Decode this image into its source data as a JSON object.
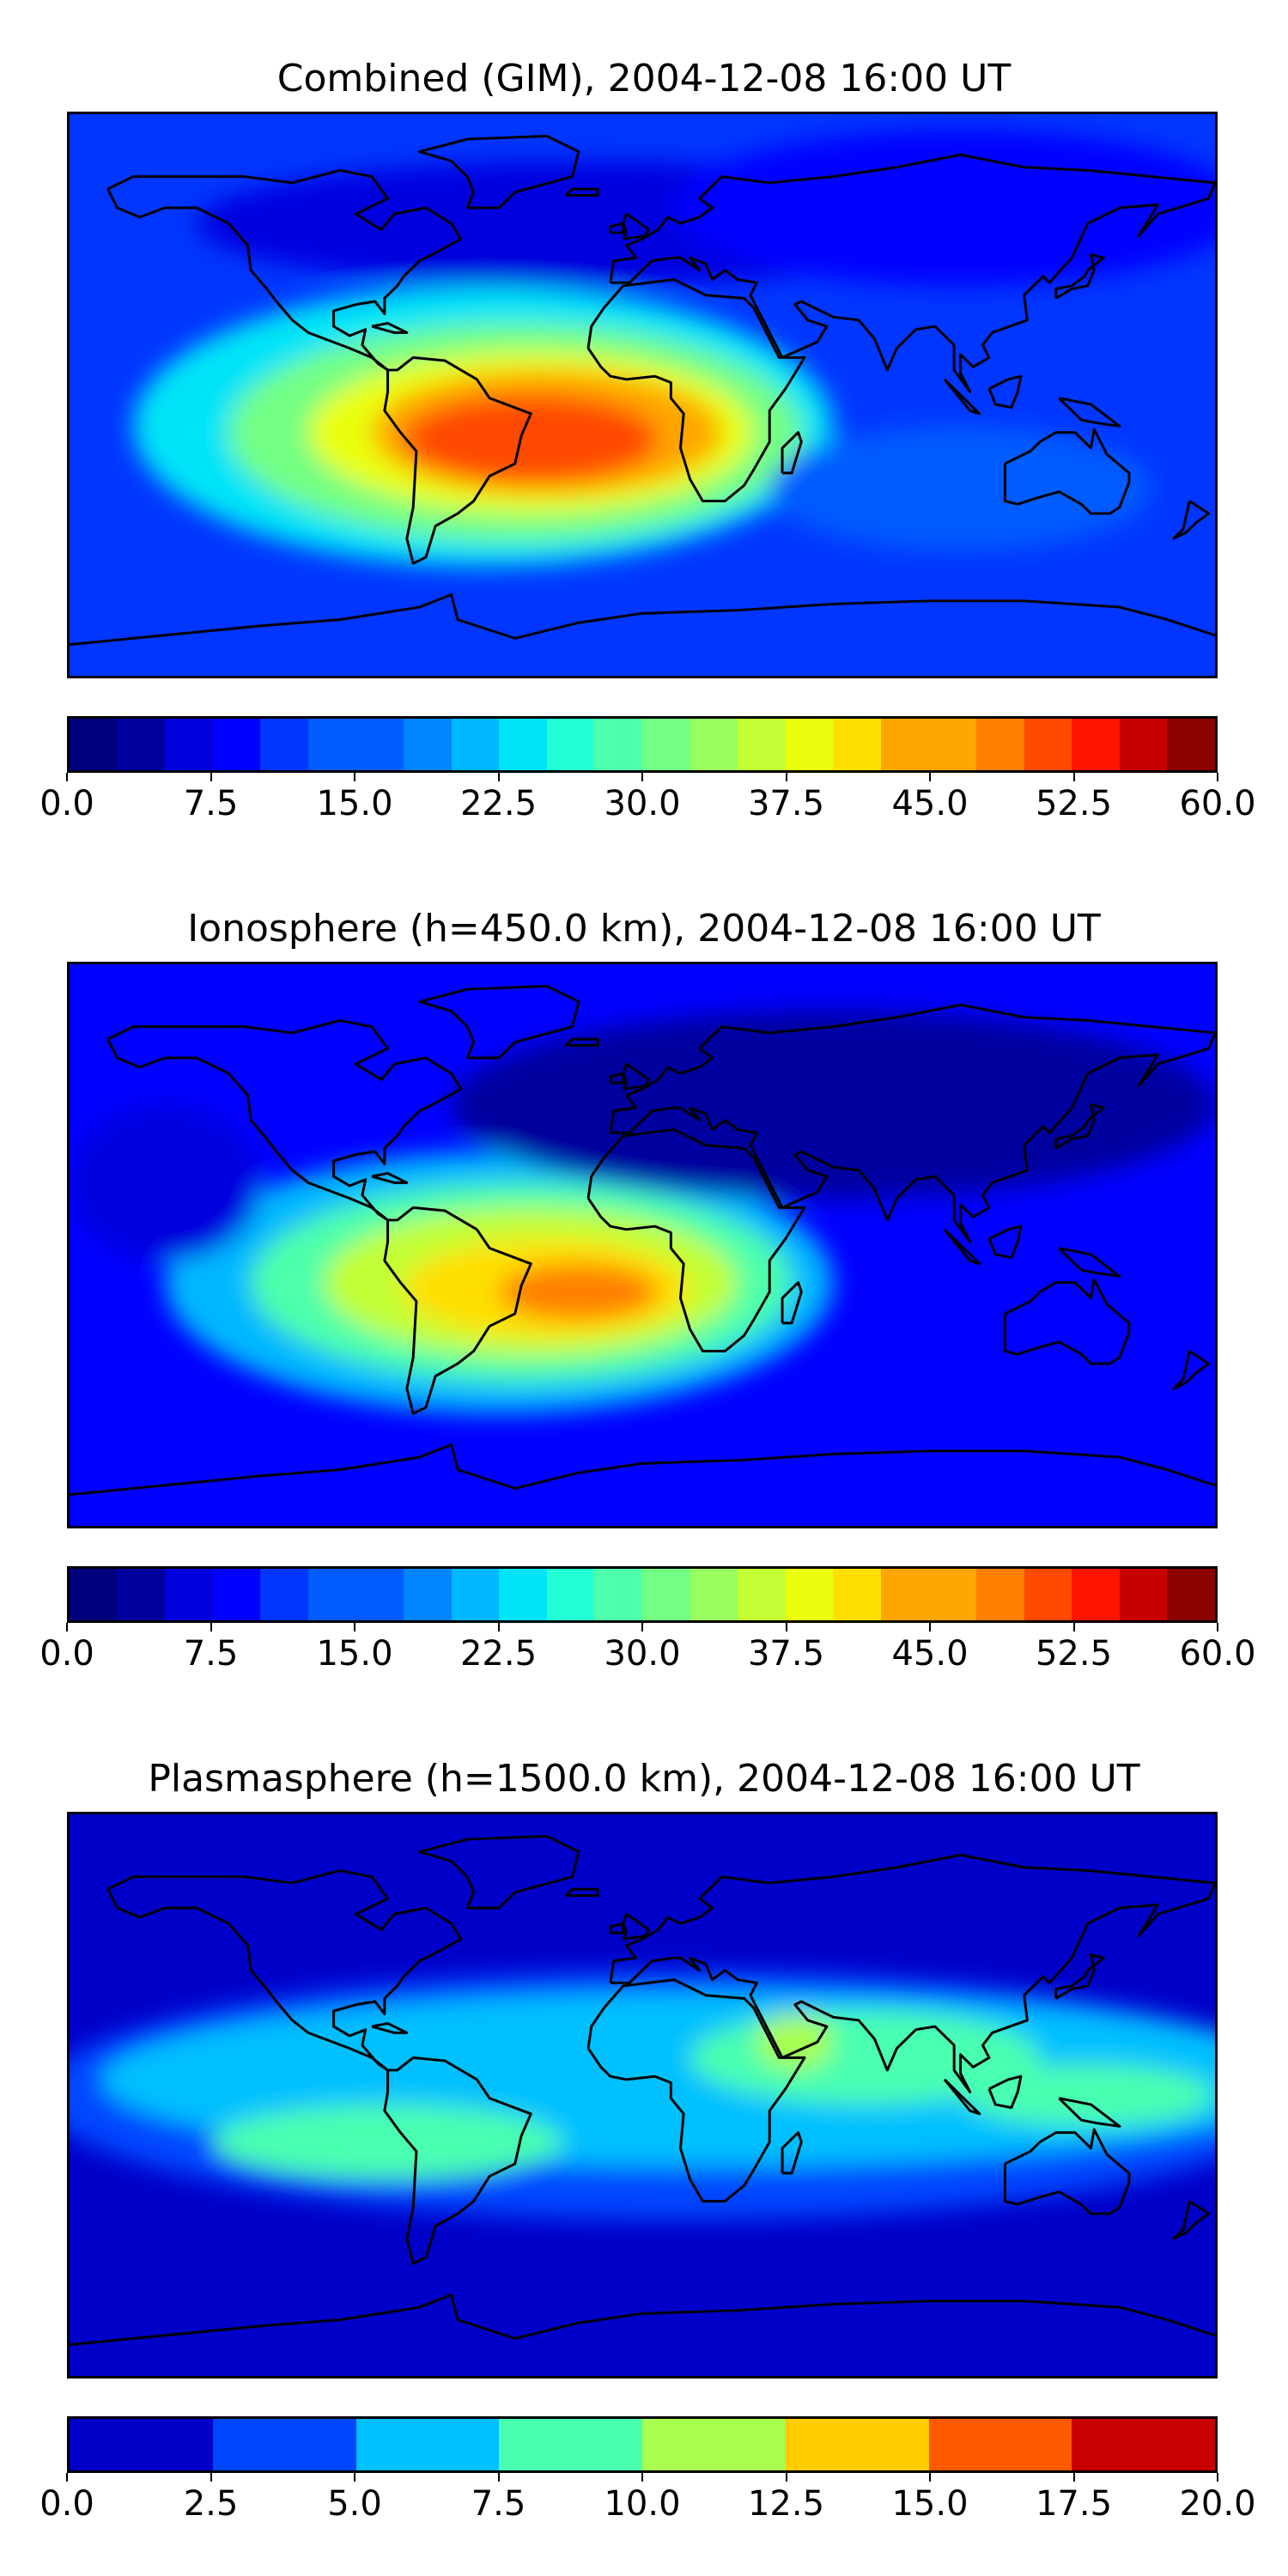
{
  "colors": {
    "jet21": [
      "#00007f",
      "#00009f",
      "#0000de",
      "#0000ff",
      "#0036ff",
      "#005cff",
      "#0084ff",
      "#00b8ff",
      "#00e4f7",
      "#23ffd4",
      "#4dffaa",
      "#73ff83",
      "#98ff5e",
      "#c3ff34",
      "#e9ff0e",
      "#ffdf00",
      "#ffa600",
      "#ff7f00",
      "#ff4a00",
      "#fe1400",
      "#c60000",
      "#8b0000"
    ],
    "jet_plasma": [
      "#0000c8",
      "#0046ff",
      "#00c0ff",
      "#48ffb0",
      "#a8ff50",
      "#ffcc00",
      "#ff5a00",
      "#c80000"
    ],
    "coastline": "#000000"
  },
  "panels": [
    {
      "title": "Combined (GIM), 2004-12-08 16:00 UT",
      "colorbar": {
        "min": 0,
        "max": 60,
        "levels": 24,
        "ticks": [
          "0.0",
          "7.5",
          "15.0",
          "22.5",
          "30.0",
          "37.5",
          "45.0",
          "52.5",
          "60.0"
        ]
      },
      "background_level": 4,
      "blobs": [
        {
          "lon": -50,
          "lat": -10,
          "rx": 110,
          "ry": 45,
          "level": 8
        },
        {
          "lon": -40,
          "lat": -12,
          "rx": 90,
          "ry": 35,
          "level": 11
        },
        {
          "lon": -35,
          "lat": -12,
          "rx": 70,
          "ry": 26,
          "level": 14
        },
        {
          "lon": -30,
          "lat": -12,
          "rx": 55,
          "ry": 20,
          "level": 16
        },
        {
          "lon": -35,
          "lat": -14,
          "rx": 40,
          "ry": 14,
          "level": 18
        },
        {
          "lon": -20,
          "lat": 55,
          "rx": 120,
          "ry": 20,
          "level": 2
        },
        {
          "lon": 100,
          "lat": 60,
          "rx": 90,
          "ry": 25,
          "level": 3
        },
        {
          "lon": 100,
          "lat": -30,
          "rx": 60,
          "ry": 20,
          "level": 5
        }
      ]
    },
    {
      "title": "Ionosphere  (h=450.0 km), 2004-12-08 16:00 UT",
      "colorbar": {
        "min": 0,
        "max": 60,
        "levels": 24,
        "ticks": [
          "0.0",
          "7.5",
          "15.0",
          "22.5",
          "30.0",
          "37.5",
          "45.0",
          "52.5",
          "60.0"
        ]
      },
      "background_level": 3,
      "blobs": [
        {
          "lon": -45,
          "lat": -12,
          "rx": 105,
          "ry": 42,
          "level": 7
        },
        {
          "lon": -38,
          "lat": -12,
          "rx": 85,
          "ry": 32,
          "level": 10
        },
        {
          "lon": -35,
          "lat": -12,
          "rx": 65,
          "ry": 24,
          "level": 13
        },
        {
          "lon": -30,
          "lat": -14,
          "rx": 45,
          "ry": 16,
          "level": 15
        },
        {
          "lon": -20,
          "lat": -15,
          "rx": 25,
          "ry": 9,
          "level": 17
        },
        {
          "lon": 60,
          "lat": 45,
          "rx": 120,
          "ry": 30,
          "level": 1
        },
        {
          "lon": -150,
          "lat": 20,
          "rx": 30,
          "ry": 25,
          "level": 2
        }
      ]
    },
    {
      "title": "Plasmasphere (h=1500.0 km), 2004-12-08 16:00 UT",
      "colorbar": {
        "min": 0,
        "max": 20,
        "levels": 8,
        "ticks": [
          "0.0",
          "2.5",
          "5.0",
          "7.5",
          "10.0",
          "12.5",
          "15.0",
          "17.5",
          "20.0"
        ]
      },
      "background_level": 0,
      "blobs": [
        {
          "lon": 10,
          "lat": 0,
          "rx": 200,
          "ry": 40,
          "level": 1
        },
        {
          "lon": 20,
          "lat": 5,
          "rx": 190,
          "ry": 28,
          "level": 2
        },
        {
          "lon": 70,
          "lat": 12,
          "rx": 55,
          "ry": 15,
          "level": 3
        },
        {
          "lon": -80,
          "lat": -15,
          "rx": 55,
          "ry": 12,
          "level": 3
        },
        {
          "lon": 48,
          "lat": 17,
          "rx": 12,
          "ry": 9,
          "level": 4
        },
        {
          "lon": 140,
          "lat": 0,
          "rx": 40,
          "ry": 10,
          "level": 3
        }
      ]
    }
  ]
}
